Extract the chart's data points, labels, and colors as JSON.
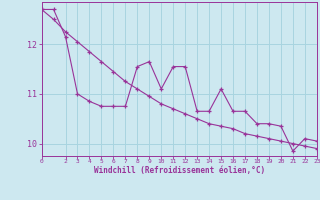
{
  "x": [
    0,
    1,
    2,
    3,
    4,
    5,
    6,
    7,
    8,
    9,
    10,
    11,
    12,
    13,
    14,
    15,
    16,
    17,
    18,
    19,
    20,
    21,
    22,
    23
  ],
  "y_data": [
    12.7,
    12.7,
    12.15,
    11.0,
    10.85,
    10.75,
    10.75,
    10.75,
    11.55,
    11.65,
    11.1,
    11.55,
    11.55,
    10.65,
    10.65,
    11.1,
    10.65,
    10.65,
    10.4,
    10.4,
    10.35,
    9.85,
    10.1,
    10.05
  ],
  "y_trend": [
    12.7,
    12.5,
    12.25,
    12.05,
    11.85,
    11.65,
    11.45,
    11.25,
    11.1,
    10.95,
    10.8,
    10.7,
    10.6,
    10.5,
    10.4,
    10.35,
    10.3,
    10.2,
    10.15,
    10.1,
    10.05,
    10.0,
    9.95,
    9.9
  ],
  "background_color": "#cde8f0",
  "grid_color": "#a8d4e0",
  "line_color": "#993399",
  "xlabel": "Windchill (Refroidissement éolien,°C)",
  "xlim": [
    0,
    23
  ],
  "ylim": [
    9.75,
    12.85
  ],
  "yticks": [
    10,
    11,
    12
  ],
  "xticks": [
    0,
    2,
    3,
    4,
    5,
    6,
    7,
    8,
    9,
    10,
    11,
    12,
    13,
    14,
    15,
    16,
    17,
    18,
    19,
    20,
    21,
    22,
    23
  ]
}
